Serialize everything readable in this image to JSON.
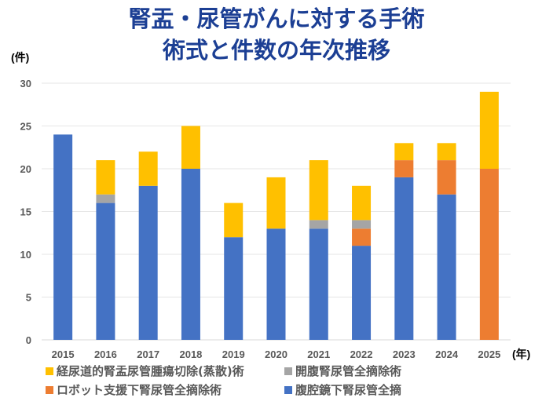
{
  "chart_data": {
    "type": "bar",
    "stacked": true,
    "title": [
      "腎盂・尿管がんに対する手術",
      "術式と件数の年次推移"
    ],
    "ylabel": "(件)",
    "xlabel": "(年)",
    "ylim": [
      0,
      30
    ],
    "yticks": [
      0,
      5,
      10,
      15,
      20,
      25,
      30
    ],
    "grid": true,
    "legend_placement": "bottom",
    "categories": [
      "2015",
      "2016",
      "2017",
      "2018",
      "2019",
      "2020",
      "2021",
      "2022",
      "2023",
      "2024",
      "2025"
    ],
    "series": [
      {
        "name": "腹腔鏡下腎尿管全摘",
        "color": "#4472c4",
        "values": [
          24,
          16,
          18,
          20,
          12,
          13,
          13,
          11,
          19,
          17,
          0
        ]
      },
      {
        "name": "ロボット支援下腎尿管全摘除術",
        "color": "#ed7d31",
        "values": [
          0,
          0,
          0,
          0,
          0,
          0,
          0,
          2,
          2,
          4,
          20
        ]
      },
      {
        "name": "開腹腎尿管全摘除術",
        "color": "#a5a5a5",
        "values": [
          0,
          1,
          0,
          0,
          0,
          0,
          1,
          1,
          0,
          0,
          0
        ]
      },
      {
        "name": "経尿道的腎盂尿管腫瘍切除(蒸散)術",
        "color": "#ffc000",
        "values": [
          0,
          4,
          4,
          5,
          4,
          6,
          7,
          4,
          2,
          2,
          9
        ]
      }
    ],
    "legend_order": [
      3,
      2,
      1,
      0
    ]
  }
}
